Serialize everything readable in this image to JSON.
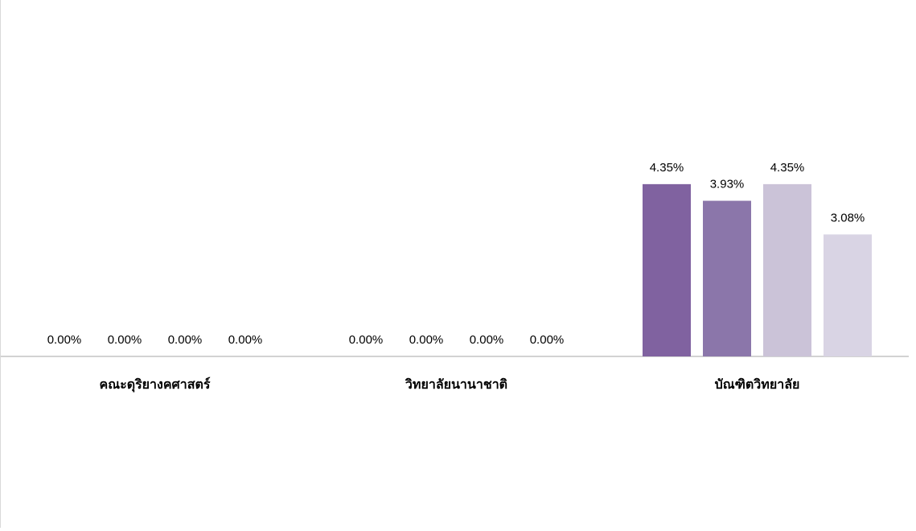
{
  "chart_data": {
    "type": "bar",
    "categories": [
      "คณะดุริยางคศาสตร์",
      "วิทยาลัยนานาชาติ",
      "บัณฑิตวิทยาลัย"
    ],
    "series": [
      {
        "values": [
          0.0,
          0.0,
          4.35
        ]
      },
      {
        "values": [
          0.0,
          0.0,
          3.93
        ]
      },
      {
        "values": [
          0.0,
          0.0,
          4.35
        ]
      },
      {
        "values": [
          0.0,
          0.0,
          3.08
        ]
      }
    ],
    "value_labels": [
      [
        "0.00%",
        "0.00%",
        "0.00%",
        "0.00%"
      ],
      [
        "0.00%",
        "0.00%",
        "0.00%",
        "0.00%"
      ],
      [
        "4.35%",
        "3.93%",
        "4.35%",
        "3.08%"
      ]
    ],
    "unit": "%",
    "ylim": [
      0,
      9
    ],
    "grid": false,
    "legend": "none",
    "colors": [
      "#8062a0",
      "#8b76aa",
      "#cbc3d8",
      "#d9d4e4"
    ],
    "axis_color": "#a6a6a6",
    "text_color": "#000000"
  }
}
